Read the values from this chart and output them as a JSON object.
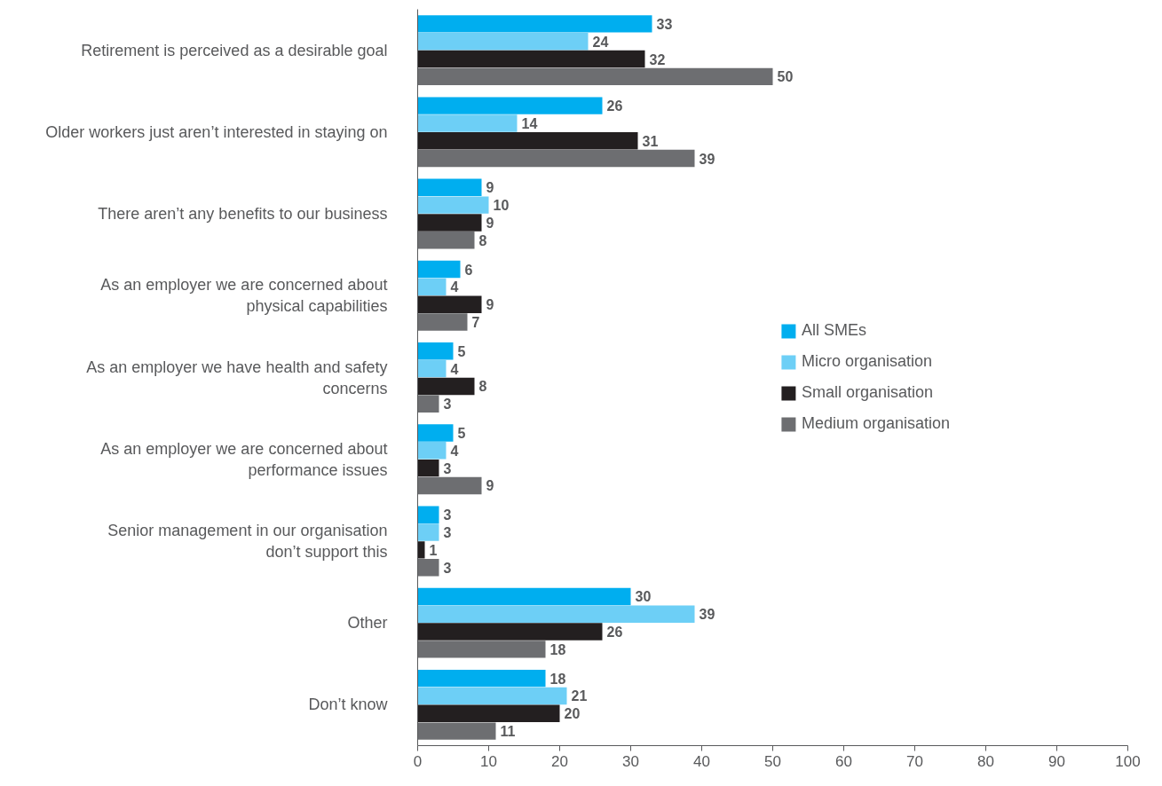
{
  "chart_data": {
    "type": "bar",
    "orientation": "horizontal",
    "categories": [
      "Retirement is perceived as a desirable goal",
      "Older workers just aren’t interested in staying on",
      "There aren’t any benefits to our business",
      "As an employer we are concerned about\nphysical capabilities",
      "As an employer we have health and safety\nconcerns",
      "As an employer we are concerned about\nperformance issues",
      "Senior management in our organisation\ndon’t support this",
      "Other",
      "Don’t know"
    ],
    "series": [
      {
        "name": "All SMEs",
        "color": "#00aeef",
        "values": [
          33,
          26,
          9,
          6,
          5,
          5,
          3,
          30,
          18
        ]
      },
      {
        "name": "Micro organisation",
        "color": "#6dcff6",
        "values": [
          24,
          14,
          10,
          4,
          4,
          4,
          3,
          39,
          21
        ]
      },
      {
        "name": "Small organisation",
        "color": "#231f20",
        "values": [
          32,
          31,
          9,
          9,
          8,
          3,
          1,
          26,
          20
        ]
      },
      {
        "name": "Medium organisation",
        "color": "#6d6e71",
        "values": [
          50,
          39,
          8,
          7,
          3,
          9,
          3,
          18,
          11
        ]
      }
    ],
    "xlim": [
      0,
      100
    ],
    "xticks": [
      0,
      10,
      20,
      30,
      40,
      50,
      60,
      70,
      80,
      90,
      100
    ],
    "data_labels": true,
    "legend": "right",
    "grid": false
  }
}
